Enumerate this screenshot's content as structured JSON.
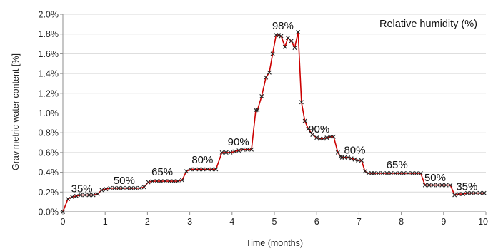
{
  "chart_data": {
    "type": "line",
    "xlabel": "Time (months)",
    "ylabel": "Gravimetric water content [%]",
    "legend_text": "Relative humidity (%)",
    "legend_position": "top-right",
    "xlim": [
      0,
      10
    ],
    "ylim": [
      0,
      2.0
    ],
    "x_ticks": [
      0,
      1,
      2,
      3,
      4,
      5,
      6,
      7,
      8,
      9
    ],
    "x_tick_labels": [
      "0",
      "1",
      "2",
      "3",
      "4",
      "5",
      "6",
      "7",
      "8",
      "9"
    ],
    "x_last_tick_label": "10",
    "y_ticks": [
      0,
      0.2,
      0.4,
      0.6,
      0.8,
      1.0,
      1.2,
      1.4,
      1.6,
      1.8,
      2.0
    ],
    "y_tick_labels": [
      "0.0%",
      "0.2%",
      "0.4%",
      "0.6%",
      "0.8%",
      "1.0%",
      "1.2%",
      "1.4%",
      "1.6%",
      "1.8%",
      "2.0%"
    ],
    "grid": "horizontal",
    "line_color": "#cc0000",
    "marker_color": "#222222",
    "annotations": [
      {
        "text": "35%",
        "x": 0.45,
        "y": 0.2
      },
      {
        "text": "50%",
        "x": 1.45,
        "y": 0.28
      },
      {
        "text": "65%",
        "x": 2.35,
        "y": 0.37
      },
      {
        "text": "80%",
        "x": 3.3,
        "y": 0.49
      },
      {
        "text": "90%",
        "x": 4.15,
        "y": 0.67
      },
      {
        "text": "98%",
        "x": 5.2,
        "y": 1.85
      },
      {
        "text": "90%",
        "x": 6.05,
        "y": 0.8
      },
      {
        "text": "80%",
        "x": 6.9,
        "y": 0.59
      },
      {
        "text": "65%",
        "x": 7.9,
        "y": 0.44
      },
      {
        "text": "50%",
        "x": 8.8,
        "y": 0.31
      },
      {
        "text": "35%",
        "x": 9.55,
        "y": 0.22
      }
    ],
    "series": [
      {
        "x": [
          0.0,
          0.12,
          0.22,
          0.32,
          0.42,
          0.52,
          0.62,
          0.72,
          0.82,
          0.92,
          1.02,
          1.12,
          1.22,
          1.32,
          1.42,
          1.52,
          1.62,
          1.72,
          1.82,
          1.92,
          2.02,
          2.12,
          2.22,
          2.32,
          2.42,
          2.52,
          2.62,
          2.72,
          2.82,
          2.92,
          3.02,
          3.12,
          3.22,
          3.32,
          3.42,
          3.52,
          3.62,
          3.76,
          3.86,
          3.96,
          4.06,
          4.16,
          4.26,
          4.36,
          4.46,
          4.56,
          4.6,
          4.7,
          4.8,
          4.88,
          4.96,
          5.04,
          5.1,
          5.16,
          5.25,
          5.32,
          5.4,
          5.48,
          5.56,
          5.64,
          5.72,
          5.8,
          5.9,
          6.0,
          6.08,
          6.16,
          6.24,
          6.32,
          6.4,
          6.5,
          6.56,
          6.6,
          6.66,
          6.74,
          6.82,
          6.9,
          6.98,
          7.06,
          7.14,
          7.22,
          7.3,
          7.36,
          7.46,
          7.56,
          7.66,
          7.76,
          7.86,
          7.96,
          8.06,
          8.16,
          8.26,
          8.36,
          8.46,
          8.56,
          8.66,
          8.76,
          8.86,
          8.96,
          9.06,
          9.16,
          9.26,
          9.36,
          9.46,
          9.56,
          9.66,
          9.76,
          9.86,
          9.96
        ],
        "y": [
          0.0,
          0.13,
          0.15,
          0.16,
          0.17,
          0.17,
          0.17,
          0.17,
          0.18,
          0.22,
          0.23,
          0.24,
          0.24,
          0.24,
          0.24,
          0.24,
          0.24,
          0.24,
          0.24,
          0.25,
          0.3,
          0.31,
          0.31,
          0.31,
          0.31,
          0.31,
          0.31,
          0.31,
          0.32,
          0.41,
          0.43,
          0.43,
          0.43,
          0.43,
          0.43,
          0.43,
          0.43,
          0.6,
          0.6,
          0.6,
          0.61,
          0.62,
          0.63,
          0.63,
          0.63,
          1.03,
          1.03,
          1.17,
          1.36,
          1.41,
          1.6,
          1.79,
          1.79,
          1.78,
          1.67,
          1.76,
          1.73,
          1.66,
          1.82,
          1.11,
          0.92,
          0.84,
          0.78,
          0.75,
          0.74,
          0.74,
          0.75,
          0.76,
          0.76,
          0.6,
          0.56,
          0.55,
          0.55,
          0.55,
          0.54,
          0.53,
          0.52,
          0.52,
          0.41,
          0.39,
          0.39,
          0.39,
          0.39,
          0.39,
          0.39,
          0.39,
          0.39,
          0.39,
          0.39,
          0.39,
          0.39,
          0.39,
          0.39,
          0.27,
          0.27,
          0.27,
          0.27,
          0.27,
          0.27,
          0.27,
          0.17,
          0.18,
          0.18,
          0.19,
          0.19,
          0.19,
          0.19,
          0.19
        ]
      }
    ]
  }
}
